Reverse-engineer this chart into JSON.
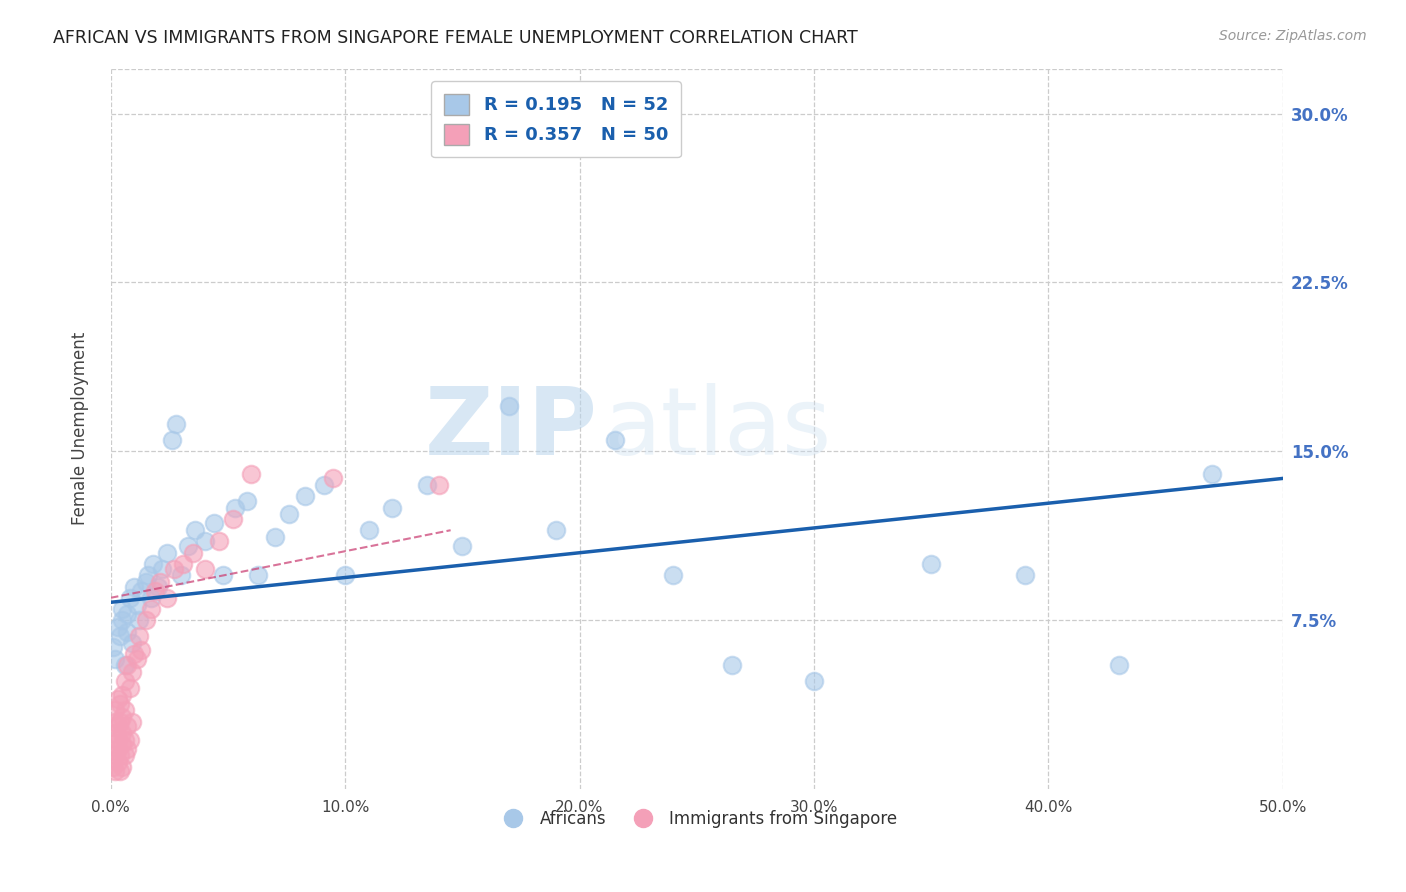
{
  "title": "AFRICAN VS IMMIGRANTS FROM SINGAPORE FEMALE UNEMPLOYMENT CORRELATION CHART",
  "source": "Source: ZipAtlas.com",
  "ylabel": "Female Unemployment",
  "xlim": [
    0.0,
    0.5
  ],
  "ylim": [
    0.0,
    0.32
  ],
  "xticks": [
    0.0,
    0.1,
    0.2,
    0.3,
    0.4,
    0.5
  ],
  "xticklabels": [
    "0.0%",
    "10.0%",
    "20.0%",
    "30.0%",
    "40.0%",
    "50.0%"
  ],
  "yticks": [
    0.075,
    0.15,
    0.225,
    0.3
  ],
  "yticklabels": [
    "7.5%",
    "15.0%",
    "22.5%",
    "30.0%"
  ],
  "legend1_r": "0.195",
  "legend1_n": "52",
  "legend2_r": "0.357",
  "legend2_n": "50",
  "blue_color": "#A8C8E8",
  "pink_color": "#F4A0B8",
  "trendline_blue_color": "#1A5FAD",
  "trendline_pink_color": "#CC4477",
  "background_color": "#FFFFFF",
  "grid_color": "#CCCCCC",
  "title_color": "#222222",
  "axis_label_color": "#444444",
  "right_tick_color": "#4472C4",
  "watermark_zip": "ZIP",
  "watermark_atlas": "atlas",
  "africans_x": [
    0.001,
    0.002,
    0.003,
    0.004,
    0.005,
    0.005,
    0.006,
    0.007,
    0.007,
    0.008,
    0.009,
    0.01,
    0.011,
    0.012,
    0.013,
    0.015,
    0.016,
    0.017,
    0.018,
    0.02,
    0.022,
    0.024,
    0.026,
    0.028,
    0.03,
    0.033,
    0.036,
    0.04,
    0.044,
    0.048,
    0.053,
    0.058,
    0.063,
    0.07,
    0.076,
    0.083,
    0.091,
    0.1,
    0.11,
    0.12,
    0.135,
    0.15,
    0.17,
    0.19,
    0.215,
    0.24,
    0.265,
    0.3,
    0.35,
    0.39,
    0.43,
    0.47
  ],
  "africans_y": [
    0.063,
    0.058,
    0.072,
    0.068,
    0.075,
    0.08,
    0.055,
    0.07,
    0.078,
    0.085,
    0.065,
    0.09,
    0.082,
    0.075,
    0.088,
    0.092,
    0.095,
    0.085,
    0.1,
    0.09,
    0.098,
    0.105,
    0.155,
    0.162,
    0.095,
    0.108,
    0.115,
    0.11,
    0.118,
    0.095,
    0.125,
    0.128,
    0.095,
    0.112,
    0.122,
    0.13,
    0.135,
    0.095,
    0.115,
    0.125,
    0.135,
    0.108,
    0.17,
    0.115,
    0.155,
    0.095,
    0.055,
    0.048,
    0.1,
    0.095,
    0.055,
    0.14
  ],
  "singapore_x": [
    0.001,
    0.001,
    0.002,
    0.002,
    0.002,
    0.002,
    0.002,
    0.003,
    0.003,
    0.003,
    0.003,
    0.003,
    0.004,
    0.004,
    0.004,
    0.004,
    0.005,
    0.005,
    0.005,
    0.005,
    0.005,
    0.006,
    0.006,
    0.006,
    0.006,
    0.007,
    0.007,
    0.007,
    0.008,
    0.008,
    0.009,
    0.009,
    0.01,
    0.011,
    0.012,
    0.013,
    0.015,
    0.017,
    0.019,
    0.021,
    0.024,
    0.027,
    0.031,
    0.035,
    0.04,
    0.046,
    0.052,
    0.06,
    0.095,
    0.14
  ],
  "singapore_y": [
    0.02,
    0.01,
    0.015,
    0.025,
    0.03,
    0.008,
    0.035,
    0.012,
    0.022,
    0.04,
    0.018,
    0.028,
    0.008,
    0.015,
    0.03,
    0.038,
    0.01,
    0.02,
    0.025,
    0.032,
    0.042,
    0.015,
    0.022,
    0.048,
    0.035,
    0.018,
    0.028,
    0.055,
    0.022,
    0.045,
    0.03,
    0.052,
    0.06,
    0.058,
    0.068,
    0.062,
    0.075,
    0.08,
    0.088,
    0.092,
    0.085,
    0.098,
    0.1,
    0.105,
    0.098,
    0.11,
    0.12,
    0.14,
    0.138,
    0.135
  ],
  "blue_trendline_x": [
    0.0,
    0.5
  ],
  "blue_trendline_y": [
    0.083,
    0.138
  ],
  "pink_trendline_x": [
    0.0,
    0.145
  ],
  "pink_trendline_y": [
    0.085,
    0.115
  ]
}
